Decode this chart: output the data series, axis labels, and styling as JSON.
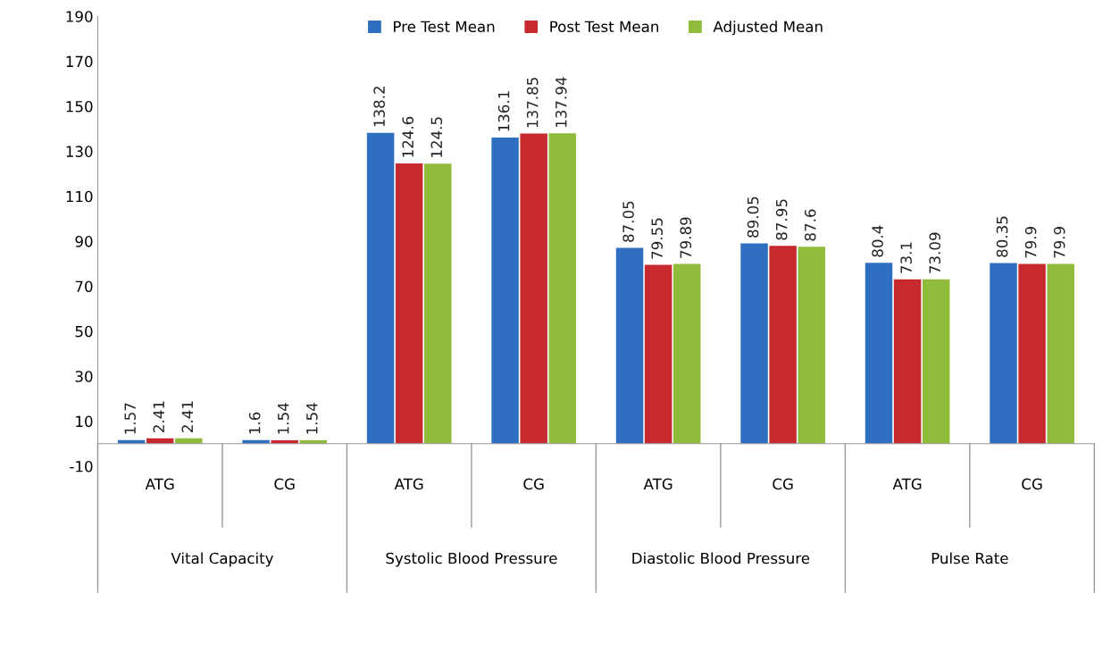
{
  "chart_data": {
    "type": "bar",
    "categories": [
      "ATG",
      "CG",
      "ATG",
      "CG",
      "ATG",
      "CG",
      "ATG",
      "CG"
    ],
    "series": [
      {
        "name": "Pre Test Mean",
        "color": "#2f6fc1",
        "values": [
          1.57,
          1.6,
          138.2,
          136.1,
          87.05,
          89.05,
          80.4,
          80.35
        ]
      },
      {
        "name": "Post Test Mean",
        "color": "#c62a2f",
        "values": [
          2.41,
          1.54,
          124.6,
          137.85,
          79.55,
          87.95,
          73.1,
          79.9
        ]
      },
      {
        "name": "Adjusted Mean",
        "color": "#8fbc3b",
        "values": [
          2.41,
          1.54,
          124.5,
          137.94,
          79.89,
          87.6,
          73.09,
          79.9
        ]
      }
    ],
    "annotations": [
      "Vital Capacity",
      "Systolic Blood Pressure",
      "Diastolic Blood Pressure",
      "Pulse Rate"
    ],
    "ylim": [
      -10,
      190
    ],
    "yticks": [
      -10,
      10,
      30,
      50,
      70,
      90,
      110,
      130,
      150,
      170,
      190
    ],
    "data_labels": true,
    "legend": "top",
    "grid": false
  }
}
